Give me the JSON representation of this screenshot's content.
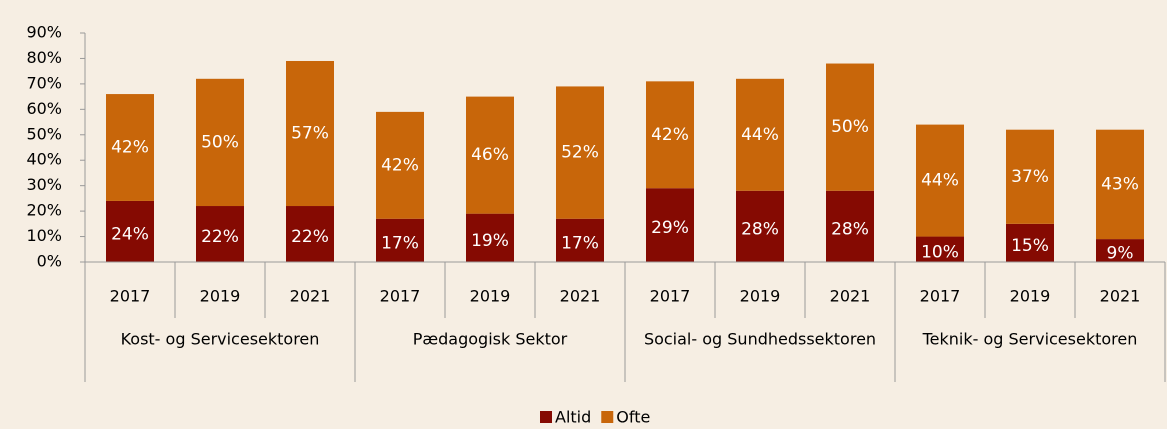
{
  "chart_data": {
    "type": "stacked_bar",
    "categories": [
      "2017",
      "2019",
      "2021",
      "2017",
      "2019",
      "2021",
      "2017",
      "2019",
      "2021",
      "2017",
      "2019",
      "2021"
    ],
    "groups": [
      "Kost- og Servicesektoren",
      "Pædagogisk Sektor",
      "Social- og Sundhedssektoren",
      "Teknik- og Servicesektoren"
    ],
    "series": [
      {
        "name": "Altid",
        "color": "#850a02",
        "values": [
          24,
          22,
          22,
          17,
          19,
          17,
          29,
          28,
          28,
          10,
          15,
          9
        ],
        "value_labels": [
          "24%",
          "22%",
          "22%",
          "17%",
          "19%",
          "17%",
          "29%",
          "28%",
          "28%",
          "10%",
          "15%",
          "9%"
        ]
      },
      {
        "name": "Ofte",
        "color": "#c8660a",
        "values": [
          42,
          50,
          57,
          42,
          46,
          52,
          42,
          44,
          50,
          44,
          37,
          43
        ],
        "value_labels": [
          "42%",
          "50%",
          "57%",
          "42%",
          "46%",
          "52%",
          "42%",
          "44%",
          "50%",
          "44%",
          "37%",
          "43%"
        ]
      }
    ],
    "ylim": [
      0,
      90
    ],
    "yticks": [
      {
        "value": 0,
        "label": "0%"
      },
      {
        "value": 10,
        "label": "10%"
      },
      {
        "value": 20,
        "label": "20%"
      },
      {
        "value": 30,
        "label": "30%"
      },
      {
        "value": 40,
        "label": "40%"
      },
      {
        "value": 50,
        "label": "50%"
      },
      {
        "value": 60,
        "label": "60%"
      },
      {
        "value": 70,
        "label": "70%"
      },
      {
        "value": 80,
        "label": "80%"
      },
      {
        "value": 90,
        "label": "90%"
      }
    ],
    "legend": "bottom"
  }
}
